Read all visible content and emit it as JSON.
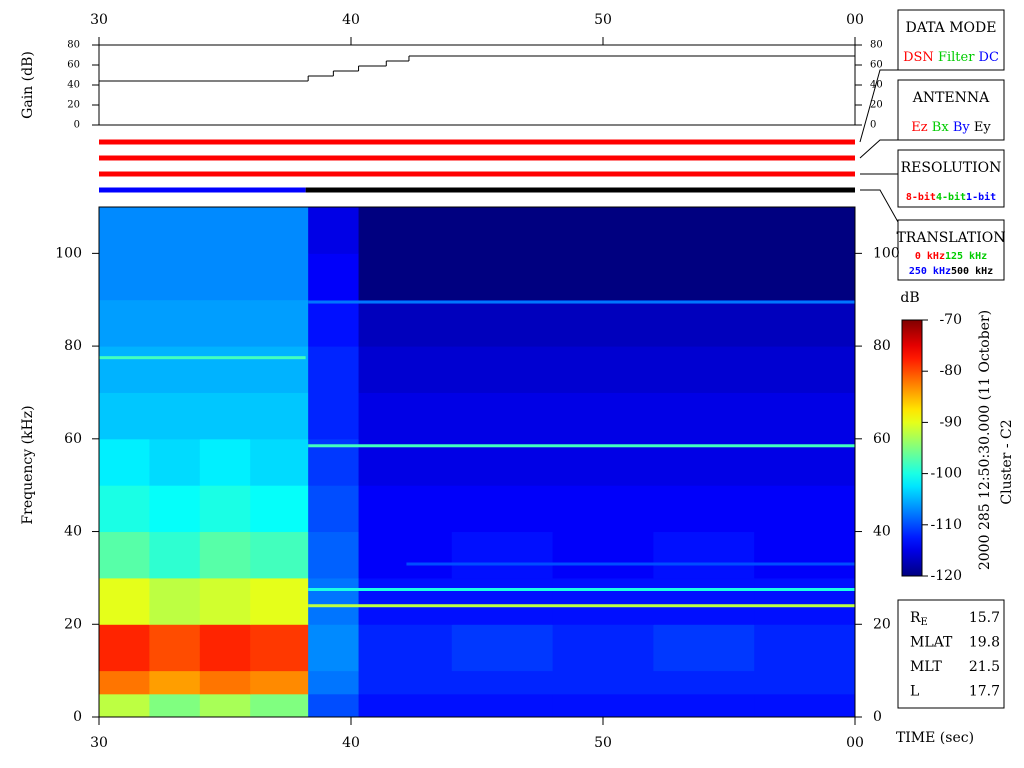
{
  "chart_data": [
    {
      "type": "line",
      "ylabel": "Gain (dB)",
      "step": true,
      "color": "#000000",
      "x": [
        30,
        38.3,
        39.3,
        40.3,
        41.4,
        42.3
      ],
      "values": [
        44,
        49,
        54,
        59,
        64,
        69
      ],
      "xlim": [
        30,
        60
      ],
      "xticks": [
        30,
        40,
        50,
        {
          "value": 60,
          "label": "00"
        }
      ],
      "ylim": [
        0,
        80
      ],
      "yticks": [
        0,
        20,
        40,
        60,
        80
      ]
    },
    {
      "type": "heatmap",
      "ylabel": "Frequency (kHz)",
      "xlabel": "TIME (sec)",
      "xlim": [
        30,
        60
      ],
      "xticks": [
        30,
        40,
        50,
        {
          "value": 60,
          "label": "00"
        }
      ],
      "ylim": [
        0,
        110
      ],
      "yticks": [
        0,
        20,
        40,
        60,
        80,
        100
      ],
      "x_edges": [
        30,
        32,
        34,
        36,
        38.3,
        40.3,
        44,
        48,
        52,
        56,
        60
      ],
      "y_edges": [
        0,
        5,
        10,
        20,
        30,
        40,
        50,
        60,
        70,
        80,
        90,
        100,
        110
      ],
      "values": [
        [
          -92,
          -95,
          -93,
          -95,
          -110,
          -113,
          -113,
          -113,
          -113,
          -113
        ],
        [
          -82,
          -84,
          -82,
          -83,
          -108,
          -112,
          -112,
          -112,
          -112,
          -112
        ],
        [
          -78,
          -80,
          -78,
          -79,
          -107,
          -112,
          -111,
          -112,
          -111,
          -112
        ],
        [
          -90,
          -92,
          -91,
          -90,
          -108,
          -113,
          -113,
          -113,
          -113,
          -113
        ],
        [
          -97,
          -99,
          -97,
          -98,
          -109,
          -114,
          -113,
          -114,
          -113,
          -114
        ],
        [
          -100,
          -101,
          -100,
          -101,
          -110,
          -114,
          -114,
          -114,
          -114,
          -114
        ],
        [
          -102,
          -103,
          -102,
          -103,
          -111,
          -115,
          -115,
          -115,
          -115,
          -115
        ],
        [
          -104,
          -104,
          -104,
          -104,
          -112,
          -115,
          -115,
          -115,
          -115,
          -115
        ],
        [
          -105,
          -105,
          -105,
          -105,
          -112,
          -116,
          -116,
          -116,
          -116,
          -116
        ],
        [
          -106,
          -106,
          -106,
          -106,
          -113,
          -117,
          -117,
          -117,
          -117,
          -117
        ],
        [
          -107,
          -107,
          -107,
          -107,
          -114,
          -120,
          -120,
          -120,
          -120,
          -120
        ],
        [
          -107,
          -107,
          -107,
          -107,
          -115,
          -120,
          -120,
          -120,
          -120,
          -120
        ]
      ],
      "tones": [
        {
          "freq": 89.5,
          "start": 38.3,
          "end": 60,
          "value": -108
        },
        {
          "freq": 77.5,
          "start": 30,
          "end": 38.2,
          "value": -98
        },
        {
          "freq": 58.5,
          "start": 38.3,
          "end": 60,
          "value": -98
        },
        {
          "freq": 33,
          "start": 42.2,
          "end": 60,
          "value": -110
        },
        {
          "freq": 27.5,
          "start": 38.3,
          "end": 60,
          "value": -100
        },
        {
          "freq": 24,
          "start": 38.3,
          "end": 60,
          "value": -92
        }
      ],
      "colorbar": {
        "label": "dB",
        "zlim": [
          -120,
          -70
        ],
        "ticks": [
          -70,
          -80,
          -90,
          -100,
          -110,
          -120
        ]
      },
      "note": "2000 285 12:50:30.000 (11 October)",
      "spacecraft": "Cluster - C2"
    }
  ],
  "status": {
    "panels": [
      {
        "title": "DATA MODE",
        "rows": [
          [
            {
              "label": "DSN",
              "color": "#ff0000"
            },
            {
              "label": "Filter",
              "color": "#00cc00"
            },
            {
              "label": "DC",
              "color": "#0000ff"
            }
          ]
        ],
        "bar": [
          {
            "start": 30,
            "end": 60,
            "color": "#ff0000"
          }
        ]
      },
      {
        "title": "ANTENNA",
        "rows": [
          [
            {
              "label": "Ez",
              "color": "#ff0000"
            },
            {
              "label": "Bx",
              "color": "#00cc00"
            },
            {
              "label": "By",
              "color": "#0000ff"
            },
            {
              "label": "Ey",
              "color": "#000000"
            }
          ]
        ],
        "bar": [
          {
            "start": 30,
            "end": 60,
            "color": "#ff0000"
          }
        ]
      },
      {
        "title": "RESOLUTION",
        "rows": [
          [
            {
              "label": "8-bit",
              "color": "#ff0000"
            },
            {
              "label": "4-bit",
              "color": "#00cc00"
            },
            {
              "label": "1-bit",
              "color": "#0000ff"
            }
          ]
        ],
        "bar": [
          {
            "start": 30,
            "end": 60,
            "color": "#ff0000"
          }
        ]
      },
      {
        "title": "TRANSLATION",
        "rows": [
          [
            {
              "label": "0 kHz",
              "color": "#ff0000"
            },
            {
              "label": "125 kHz",
              "color": "#00cc00"
            }
          ],
          [
            {
              "label": "250 kHz",
              "color": "#0000ff"
            },
            {
              "label": "500 kHz",
              "color": "#000000"
            }
          ]
        ],
        "bar": [
          {
            "start": 30,
            "end": 38.2,
            "color": "#0000ff"
          },
          {
            "start": 38.2,
            "end": 60,
            "color": "#000000"
          }
        ]
      }
    ]
  },
  "orbit": [
    {
      "label": "R",
      "sub": "E",
      "value": "15.7"
    },
    {
      "label": "MLAT",
      "value": "19.8"
    },
    {
      "label": "MLT",
      "value": "21.5"
    },
    {
      "label": "L",
      "value": "17.7"
    }
  ]
}
